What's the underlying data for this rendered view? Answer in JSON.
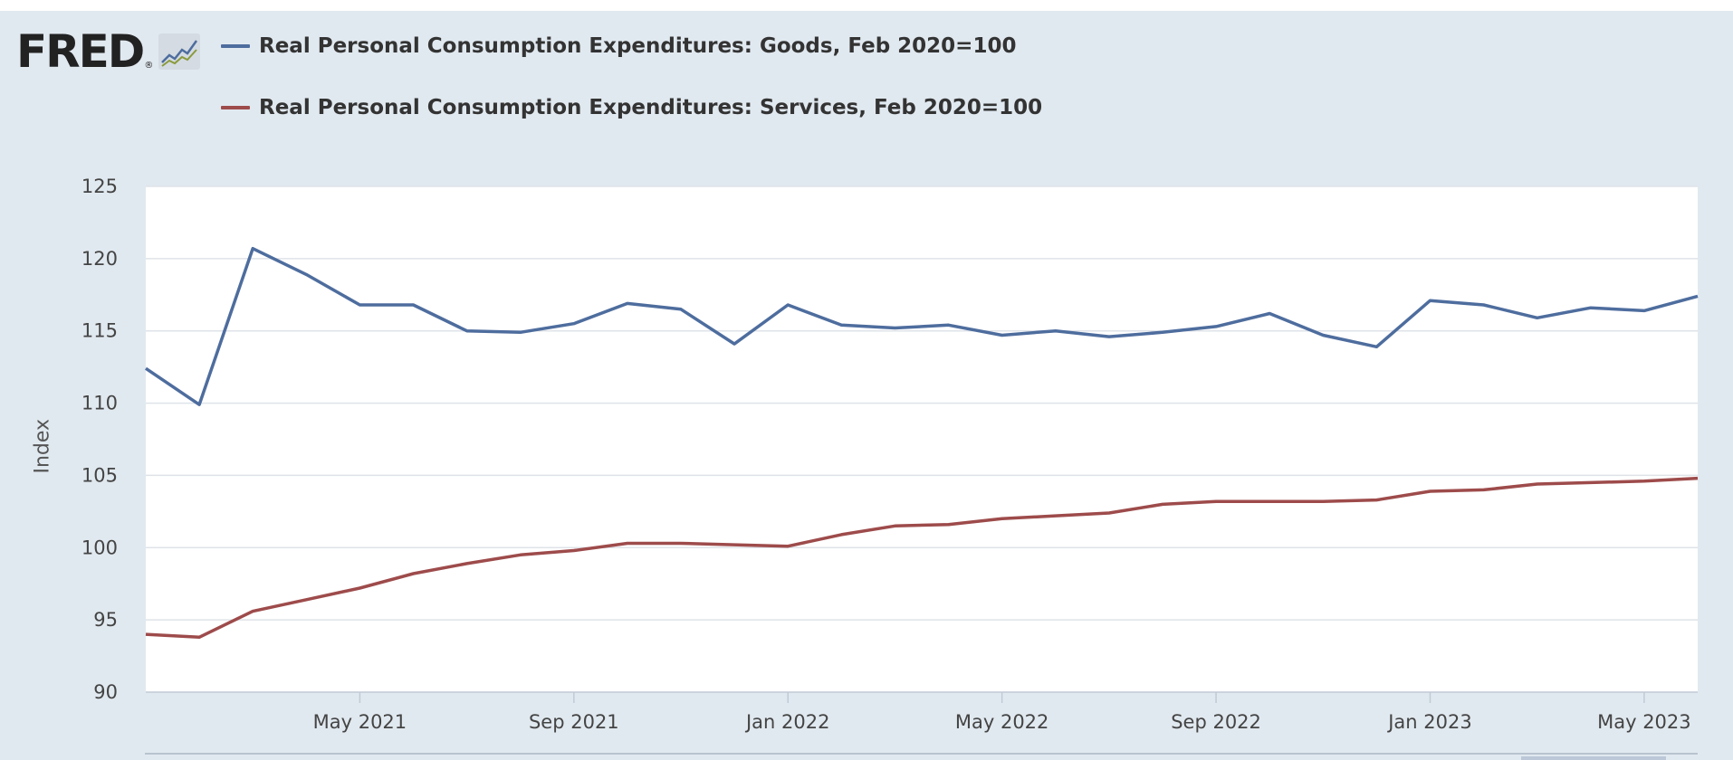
{
  "logo": {
    "text": "FRED",
    "reg_mark": "®",
    "icon": "line-chart-icon"
  },
  "legend": [
    {
      "label": "Real Personal Consumption Expenditures: Goods, Feb 2020=100",
      "color": "#4e6d9e"
    },
    {
      "label": "Real Personal Consumption Expenditures: Services, Feb 2020=100",
      "color": "#9e4b4b"
    }
  ],
  "colors": {
    "background": "#e1e9f0",
    "plot_background": "#ffffff",
    "grid": "#dfe3e8"
  },
  "chart_data": {
    "type": "line",
    "ylabel": "Index",
    "ylim": [
      90,
      125
    ],
    "yticks": [
      90,
      95,
      100,
      105,
      110,
      115,
      120,
      125
    ],
    "xlim": [
      "2021-01",
      "2023-06"
    ],
    "xticks": [
      {
        "date": "2021-05",
        "label": "May 2021"
      },
      {
        "date": "2021-09",
        "label": "Sep 2021"
      },
      {
        "date": "2022-01",
        "label": "Jan 2022"
      },
      {
        "date": "2022-05",
        "label": "May 2022"
      },
      {
        "date": "2022-09",
        "label": "Sep 2022"
      },
      {
        "date": "2023-01",
        "label": "Jan 2023"
      },
      {
        "date": "2023-05",
        "label": "May 2023"
      }
    ],
    "grid": true,
    "legend_position": "top-left",
    "x": [
      "2021-01",
      "2021-02",
      "2021-03",
      "2021-04",
      "2021-05",
      "2021-06",
      "2021-07",
      "2021-08",
      "2021-09",
      "2021-10",
      "2021-11",
      "2021-12",
      "2022-01",
      "2022-02",
      "2022-03",
      "2022-04",
      "2022-05",
      "2022-06",
      "2022-07",
      "2022-08",
      "2022-09",
      "2022-10",
      "2022-11",
      "2022-12",
      "2023-01",
      "2023-02",
      "2023-03",
      "2023-04",
      "2023-05",
      "2023-06"
    ],
    "series": [
      {
        "name": "Real Personal Consumption Expenditures: Goods, Feb 2020=100",
        "color": "#4e6d9e",
        "values": [
          112.4,
          109.9,
          120.7,
          118.9,
          116.8,
          116.8,
          115.0,
          114.9,
          115.5,
          116.9,
          116.5,
          114.1,
          116.8,
          115.4,
          115.2,
          115.4,
          114.7,
          115.0,
          114.6,
          114.9,
          115.3,
          116.2,
          114.7,
          113.9,
          117.1,
          116.8,
          115.9,
          116.6,
          116.4,
          117.4
        ]
      },
      {
        "name": "Real Personal Consumption Expenditures: Services, Feb 2020=100",
        "color": "#9e4b4b",
        "values": [
          94.0,
          93.8,
          95.6,
          96.4,
          97.2,
          98.2,
          98.9,
          99.5,
          99.8,
          100.3,
          100.3,
          100.2,
          100.1,
          100.9,
          101.5,
          101.6,
          102.0,
          102.2,
          102.4,
          103.0,
          103.2,
          103.2,
          103.2,
          103.3,
          103.9,
          104.0,
          104.4,
          104.5,
          104.6,
          104.8
        ]
      }
    ]
  }
}
